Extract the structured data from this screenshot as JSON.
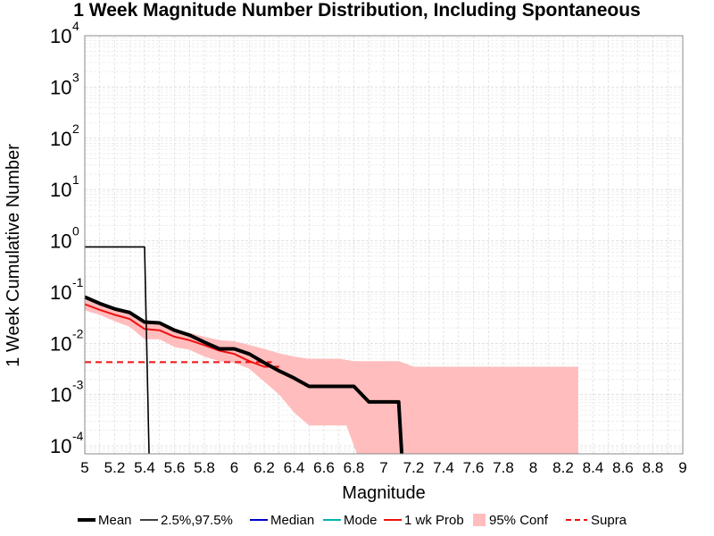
{
  "chart_data": {
    "type": "line",
    "title": "1 Week Magnitude Number Distribution, Including Spontaneous",
    "xlabel": "Magnitude",
    "ylabel": "1 Week Cumulative Number",
    "x_range": [
      5,
      9
    ],
    "y_range": [
      7e-05,
      10000
    ],
    "y_scale": "log",
    "grid": true,
    "legend_placement": "bottom",
    "x_ticks": [
      "5",
      "5.2",
      "5.4",
      "5.6",
      "5.8",
      "6",
      "6.2",
      "6.4",
      "6.6",
      "6.8",
      "7",
      "7.2",
      "7.4",
      "7.6",
      "7.8",
      "8",
      "8.2",
      "8.4",
      "8.6",
      "8.8",
      "9"
    ],
    "y_ticks": [
      {
        "base": "10",
        "exp": "-4"
      },
      {
        "base": "10",
        "exp": "-3"
      },
      {
        "base": "10",
        "exp": "-2"
      },
      {
        "base": "10",
        "exp": "-1"
      },
      {
        "base": "10",
        "exp": "0"
      },
      {
        "base": "10",
        "exp": "1"
      },
      {
        "base": "10",
        "exp": "2"
      },
      {
        "base": "10",
        "exp": "3"
      },
      {
        "base": "10",
        "exp": "4"
      }
    ],
    "legend": [
      "Mean",
      "2.5%,97.5%",
      "Median",
      "Mode",
      "1 wk Prob",
      "95% Conf",
      "Supra"
    ],
    "colors": {
      "mean": "#000000",
      "pct": "#000000",
      "median": "#0000cc",
      "mode": "#00b3b3",
      "prob": "#ee1111",
      "conf": "#ffbdbd",
      "supra": "#ee1111"
    },
    "series": [
      {
        "name": "Mean",
        "style": "step-line",
        "points": [
          [
            5.0,
            0.08
          ],
          [
            5.1,
            0.06
          ],
          [
            5.2,
            0.047
          ],
          [
            5.3,
            0.04
          ],
          [
            5.4,
            0.026
          ],
          [
            5.5,
            0.025
          ],
          [
            5.6,
            0.018
          ],
          [
            5.7,
            0.0145
          ],
          [
            5.8,
            0.0105
          ],
          [
            5.9,
            0.0078
          ],
          [
            6.0,
            0.0078
          ],
          [
            6.1,
            0.0062
          ],
          [
            6.2,
            0.0042
          ],
          [
            6.3,
            0.0029
          ],
          [
            6.4,
            0.0021
          ],
          [
            6.5,
            0.00145
          ],
          [
            6.6,
            0.00145
          ],
          [
            6.7,
            0.00145
          ],
          [
            6.8,
            0.00145
          ],
          [
            6.9,
            0.00072
          ],
          [
            7.0,
            0.00072
          ],
          [
            7.1,
            0.00072
          ],
          [
            7.12,
            7e-05
          ]
        ]
      },
      {
        "name": "2.5%,97.5%",
        "style": "thin-line",
        "points": [
          [
            5.0,
            0.76
          ],
          [
            5.4,
            0.76
          ],
          [
            5.43,
            7e-05
          ]
        ]
      },
      {
        "name": "1 wk Prob",
        "style": "line",
        "points": [
          [
            5.0,
            0.058
          ],
          [
            5.1,
            0.045
          ],
          [
            5.2,
            0.036
          ],
          [
            5.3,
            0.03
          ],
          [
            5.4,
            0.019
          ],
          [
            5.5,
            0.018
          ],
          [
            5.6,
            0.0135
          ],
          [
            5.7,
            0.0115
          ],
          [
            5.8,
            0.0092
          ],
          [
            5.9,
            0.0072
          ],
          [
            6.0,
            0.0062
          ],
          [
            6.1,
            0.0045
          ],
          [
            6.2,
            0.0035
          ],
          [
            6.3,
            0.0035
          ]
        ]
      },
      {
        "name": "Supra",
        "style": "dashed",
        "points": [
          [
            5.0,
            0.0043
          ],
          [
            6.25,
            0.0043
          ]
        ]
      }
    ],
    "confidence_band": {
      "name": "95% Conf",
      "upper": [
        [
          5.0,
          0.072
        ],
        [
          5.1,
          0.056
        ],
        [
          5.2,
          0.044
        ],
        [
          5.3,
          0.037
        ],
        [
          5.4,
          0.025
        ],
        [
          5.5,
          0.023
        ],
        [
          5.6,
          0.019
        ],
        [
          5.7,
          0.016
        ],
        [
          5.8,
          0.0135
        ],
        [
          5.9,
          0.0115
        ],
        [
          6.0,
          0.011
        ],
        [
          6.1,
          0.0093
        ],
        [
          6.2,
          0.0078
        ],
        [
          6.3,
          0.0064
        ],
        [
          6.4,
          0.0055
        ],
        [
          6.5,
          0.005
        ],
        [
          6.6,
          0.005
        ],
        [
          6.7,
          0.005
        ],
        [
          6.8,
          0.0045
        ],
        [
          6.9,
          0.0045
        ],
        [
          7.0,
          0.0045
        ],
        [
          7.1,
          0.0045
        ],
        [
          7.2,
          0.0035
        ],
        [
          8.3,
          0.0035
        ]
      ],
      "lower": [
        [
          8.3,
          7e-05
        ],
        [
          6.82,
          7e-05
        ],
        [
          6.75,
          0.00025
        ],
        [
          6.5,
          0.00025
        ],
        [
          6.4,
          0.00045
        ],
        [
          6.3,
          0.001
        ],
        [
          6.2,
          0.0018
        ],
        [
          6.1,
          0.0032
        ],
        [
          6.0,
          0.0042
        ],
        [
          5.9,
          0.0045
        ],
        [
          5.8,
          0.0055
        ],
        [
          5.7,
          0.0075
        ],
        [
          5.6,
          0.0085
        ],
        [
          5.5,
          0.012
        ],
        [
          5.4,
          0.012
        ],
        [
          5.3,
          0.021
        ],
        [
          5.2,
          0.027
        ],
        [
          5.1,
          0.036
        ],
        [
          5.0,
          0.044
        ]
      ]
    }
  }
}
